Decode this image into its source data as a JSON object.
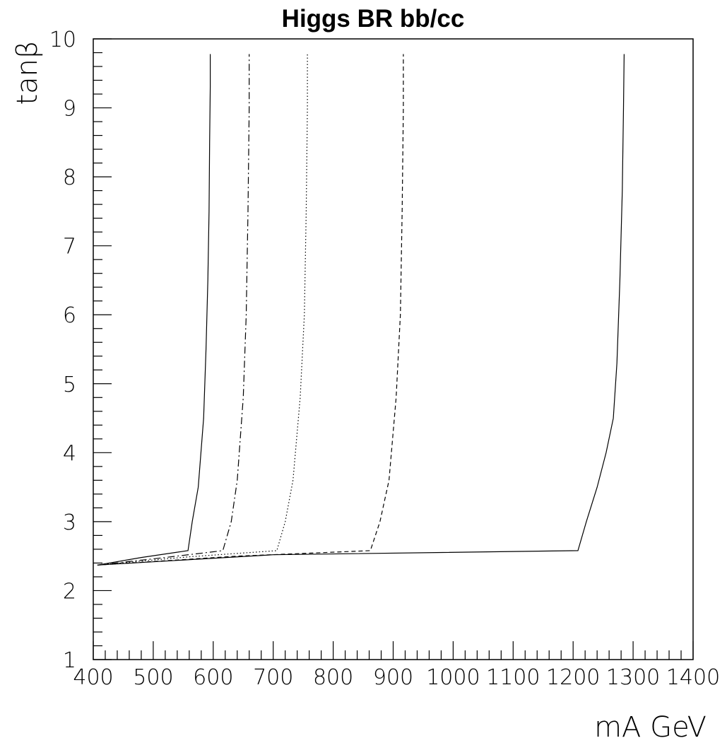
{
  "chart_data": {
    "type": "line",
    "title": "Higgs BR bb/cc",
    "xlabel": "mA GeV",
    "ylabel": "tanβ",
    "xlim": [
      400,
      1400
    ],
    "ylim": [
      1,
      10
    ],
    "x_ticks": [
      400,
      500,
      600,
      700,
      800,
      900,
      1000,
      1100,
      1200,
      1300,
      1400
    ],
    "x_tick_labels": [
      "400",
      "500",
      "600",
      "700",
      "800",
      "900",
      "1000",
      "1100",
      "1200",
      "1300",
      "1400"
    ],
    "y_ticks": [
      1,
      2,
      3,
      4,
      5,
      6,
      7,
      8,
      9,
      10
    ],
    "y_tick_labels": [
      "1",
      "2",
      "3",
      "4",
      "5",
      "6",
      "7",
      "8",
      "9",
      "10"
    ],
    "grid": false,
    "legend": "none",
    "series": [
      {
        "style": "solid",
        "x": [
          407,
          480,
          558,
          565,
          575,
          584,
          588,
          591,
          593,
          594,
          595,
          595
        ],
        "y": [
          2.37,
          2.48,
          2.58,
          3.0,
          3.5,
          4.5,
          5.5,
          6.5,
          7.5,
          8.5,
          9.3,
          9.78
        ]
      },
      {
        "style": "dashdot",
        "x": [
          407,
          520,
          616,
          630,
          640,
          650,
          655,
          658,
          660,
          660
        ],
        "y": [
          2.37,
          2.48,
          2.58,
          3.0,
          3.6,
          4.8,
          6.0,
          7.5,
          9.0,
          9.78
        ]
      },
      {
        "style": "dotted",
        "x": [
          407,
          560,
          706,
          720,
          733,
          745,
          752,
          755,
          757,
          757
        ],
        "y": [
          2.37,
          2.49,
          2.58,
          3.0,
          3.6,
          4.8,
          6.0,
          7.5,
          9.0,
          9.78
        ]
      },
      {
        "style": "dashed",
        "x": [
          407,
          640,
          862,
          878,
          893,
          905,
          912,
          915,
          917,
          917
        ],
        "y": [
          2.37,
          2.5,
          2.58,
          3.0,
          3.6,
          4.8,
          6.0,
          7.5,
          9.0,
          9.78
        ]
      },
      {
        "style": "solid",
        "x": [
          407,
          700,
          1208,
          1222,
          1240,
          1255,
          1267,
          1273,
          1278,
          1282,
          1284,
          1285
        ],
        "y": [
          2.37,
          2.52,
          2.58,
          3.0,
          3.5,
          4.0,
          4.5,
          5.3,
          6.5,
          7.8,
          9.0,
          9.78
        ]
      }
    ]
  }
}
